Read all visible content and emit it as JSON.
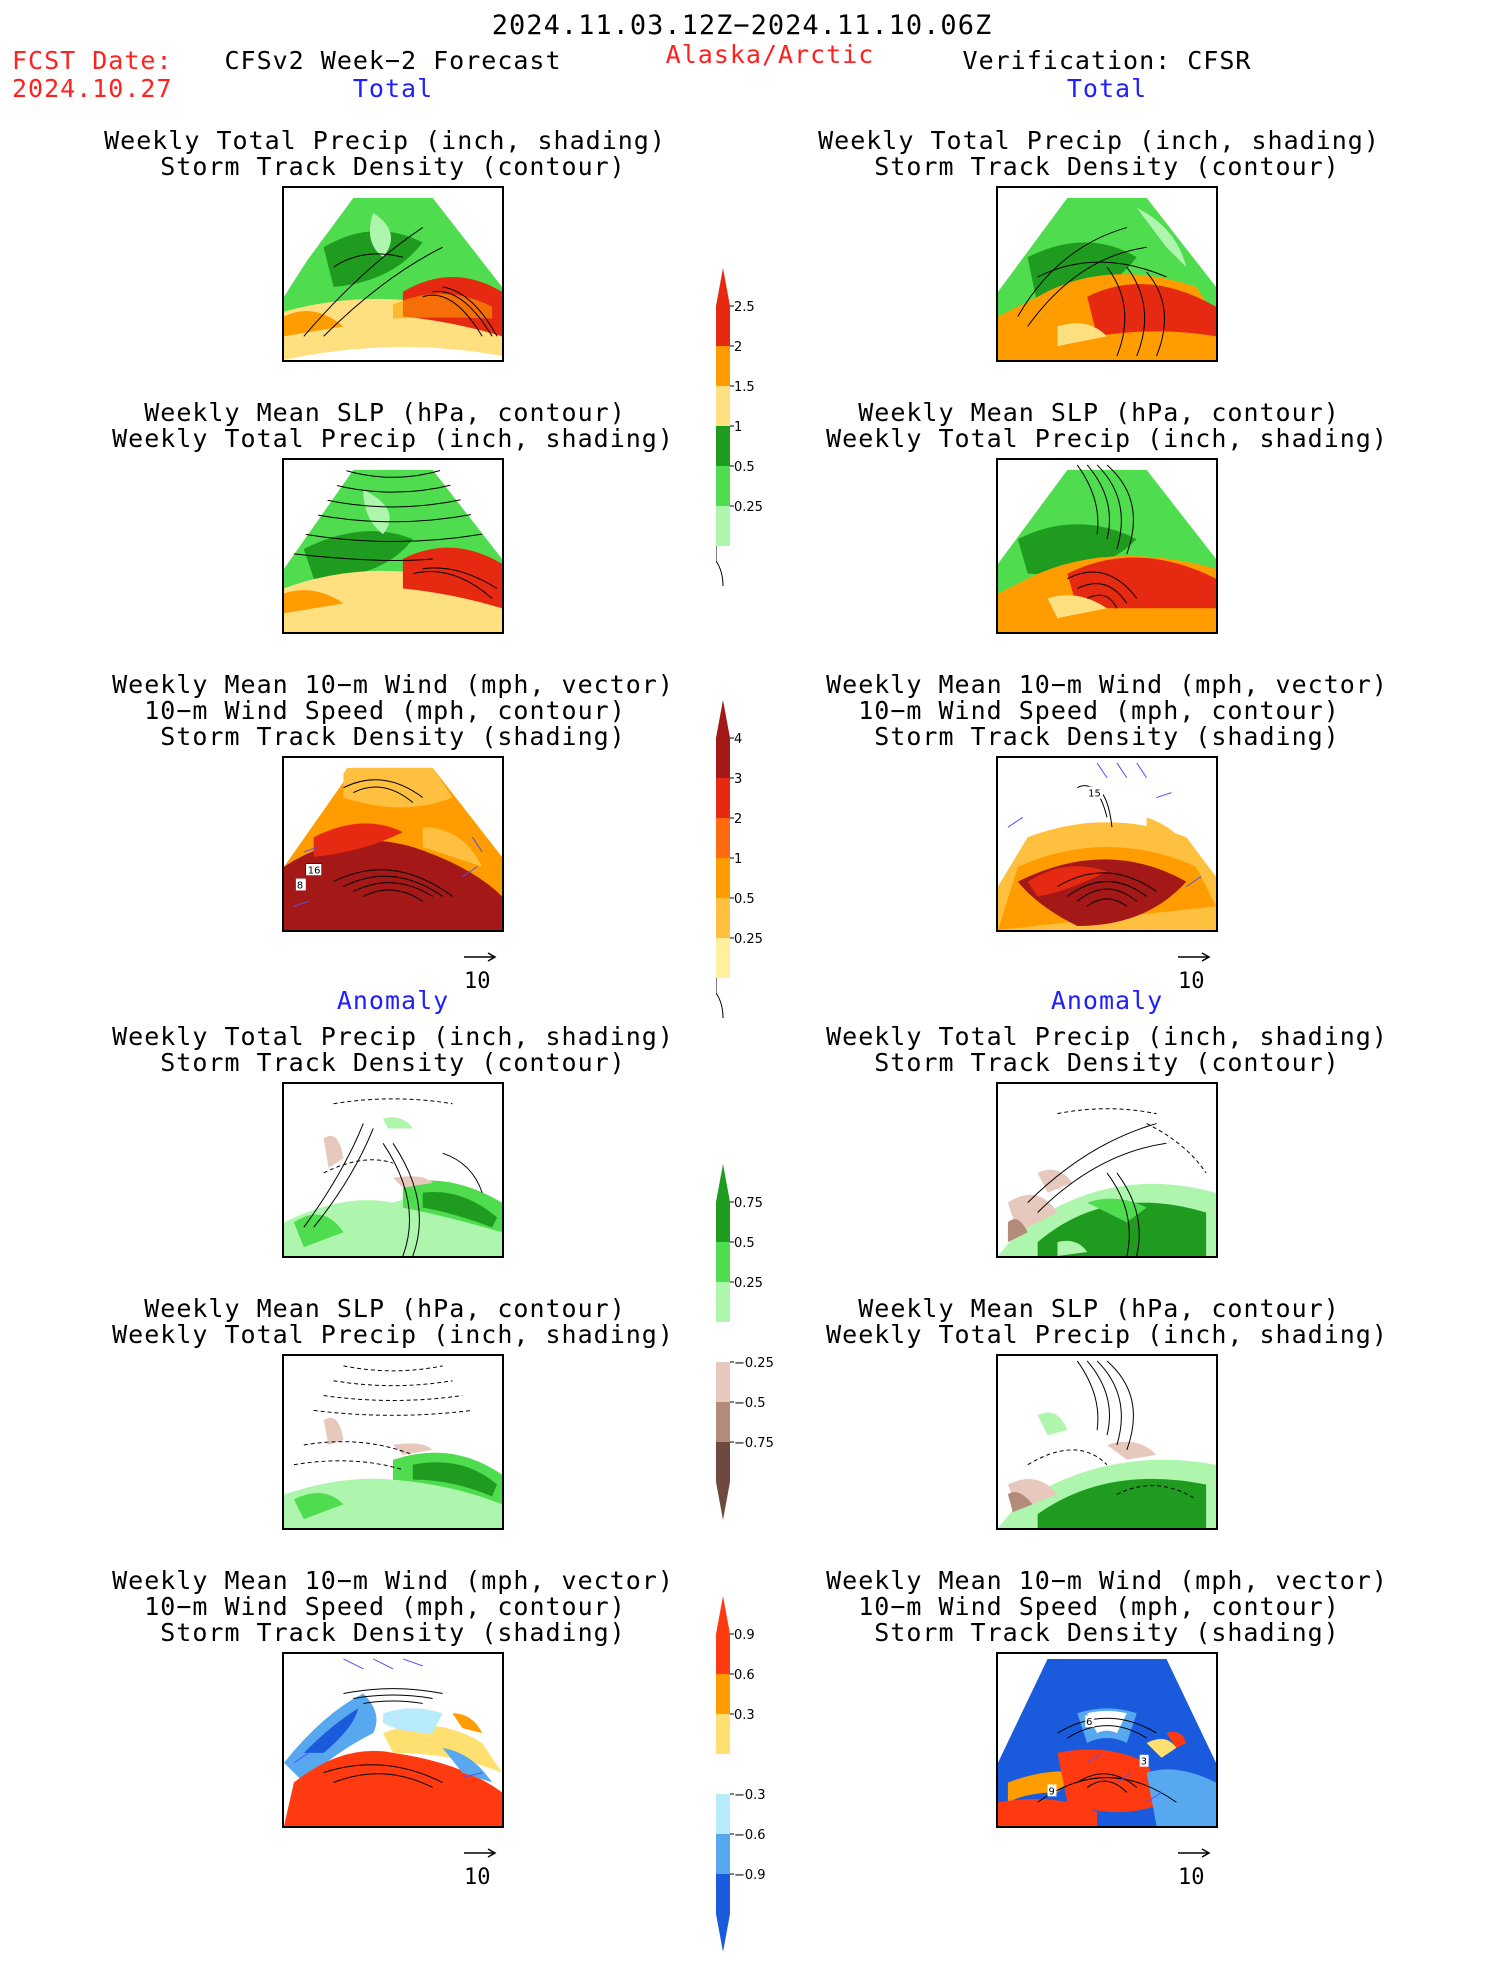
{
  "header": {
    "date_range": "2024.11.03.12Z−2024.11.10.06Z",
    "fcst_label": "FCST Date:",
    "fcst_date": "2024.10.27",
    "model_title": "CFSv2 Week−2 Forecast",
    "region": "Alaska/Arctic",
    "verification": "Verification: CFSR"
  },
  "sections": {
    "total": "Total",
    "anomaly": "Anomaly"
  },
  "titles": {
    "precip_storm": [
      "Weekly Total Precip (inch, shading)",
      "Storm Track Density (contour)"
    ],
    "slp_precip": [
      "Weekly Mean SLP (hPa, contour)",
      "Weekly Total Precip (inch, shading)"
    ],
    "wind_storm": [
      "Weekly Mean 10−m Wind (mph, vector)",
      "10−m Wind Speed (mph, contour)",
      "Storm Track Density (shading)"
    ]
  },
  "vector_scale": "10",
  "contour_labels": {
    "fcst_total_wind": [
      "16",
      "8"
    ],
    "obs_total_wind": [
      "15"
    ],
    "obs_anom_wind": [
      "6",
      "3",
      "9"
    ]
  },
  "colorbars": {
    "precip_total": {
      "labels": [
        "2.5",
        "2",
        "1.5",
        "1",
        "0.5",
        "0.25"
      ],
      "colors": [
        "#e62a12",
        "#ff9c00",
        "#ffe080",
        "#1f9c1f",
        "#4fdc4f",
        "#aef5ae"
      ]
    },
    "storm_total": {
      "labels": [
        "4",
        "3",
        "2",
        "1",
        "0.5",
        "0.25"
      ],
      "colors": [
        "#a41818",
        "#e62a12",
        "#ff6a10",
        "#ff9c00",
        "#ffc040",
        "#fff0a0"
      ]
    },
    "precip_anom": {
      "labels": [
        "0.75",
        "0.5",
        "0.25",
        "−0.25",
        "−0.5",
        "−0.75"
      ],
      "colors": [
        "#1f9c1f",
        "#4fdc4f",
        "#aef5ae",
        "#e6c8bc",
        "#b48a7a",
        "#6e4a3e"
      ]
    },
    "storm_anom": {
      "labels": [
        "0.9",
        "0.6",
        "0.3",
        "−0.3",
        "−0.6",
        "−0.9"
      ],
      "colors": [
        "#ff3a10",
        "#ff9c00",
        "#ffe070",
        "#b8ecfc",
        "#58a8f0",
        "#1a5adc"
      ]
    }
  }
}
